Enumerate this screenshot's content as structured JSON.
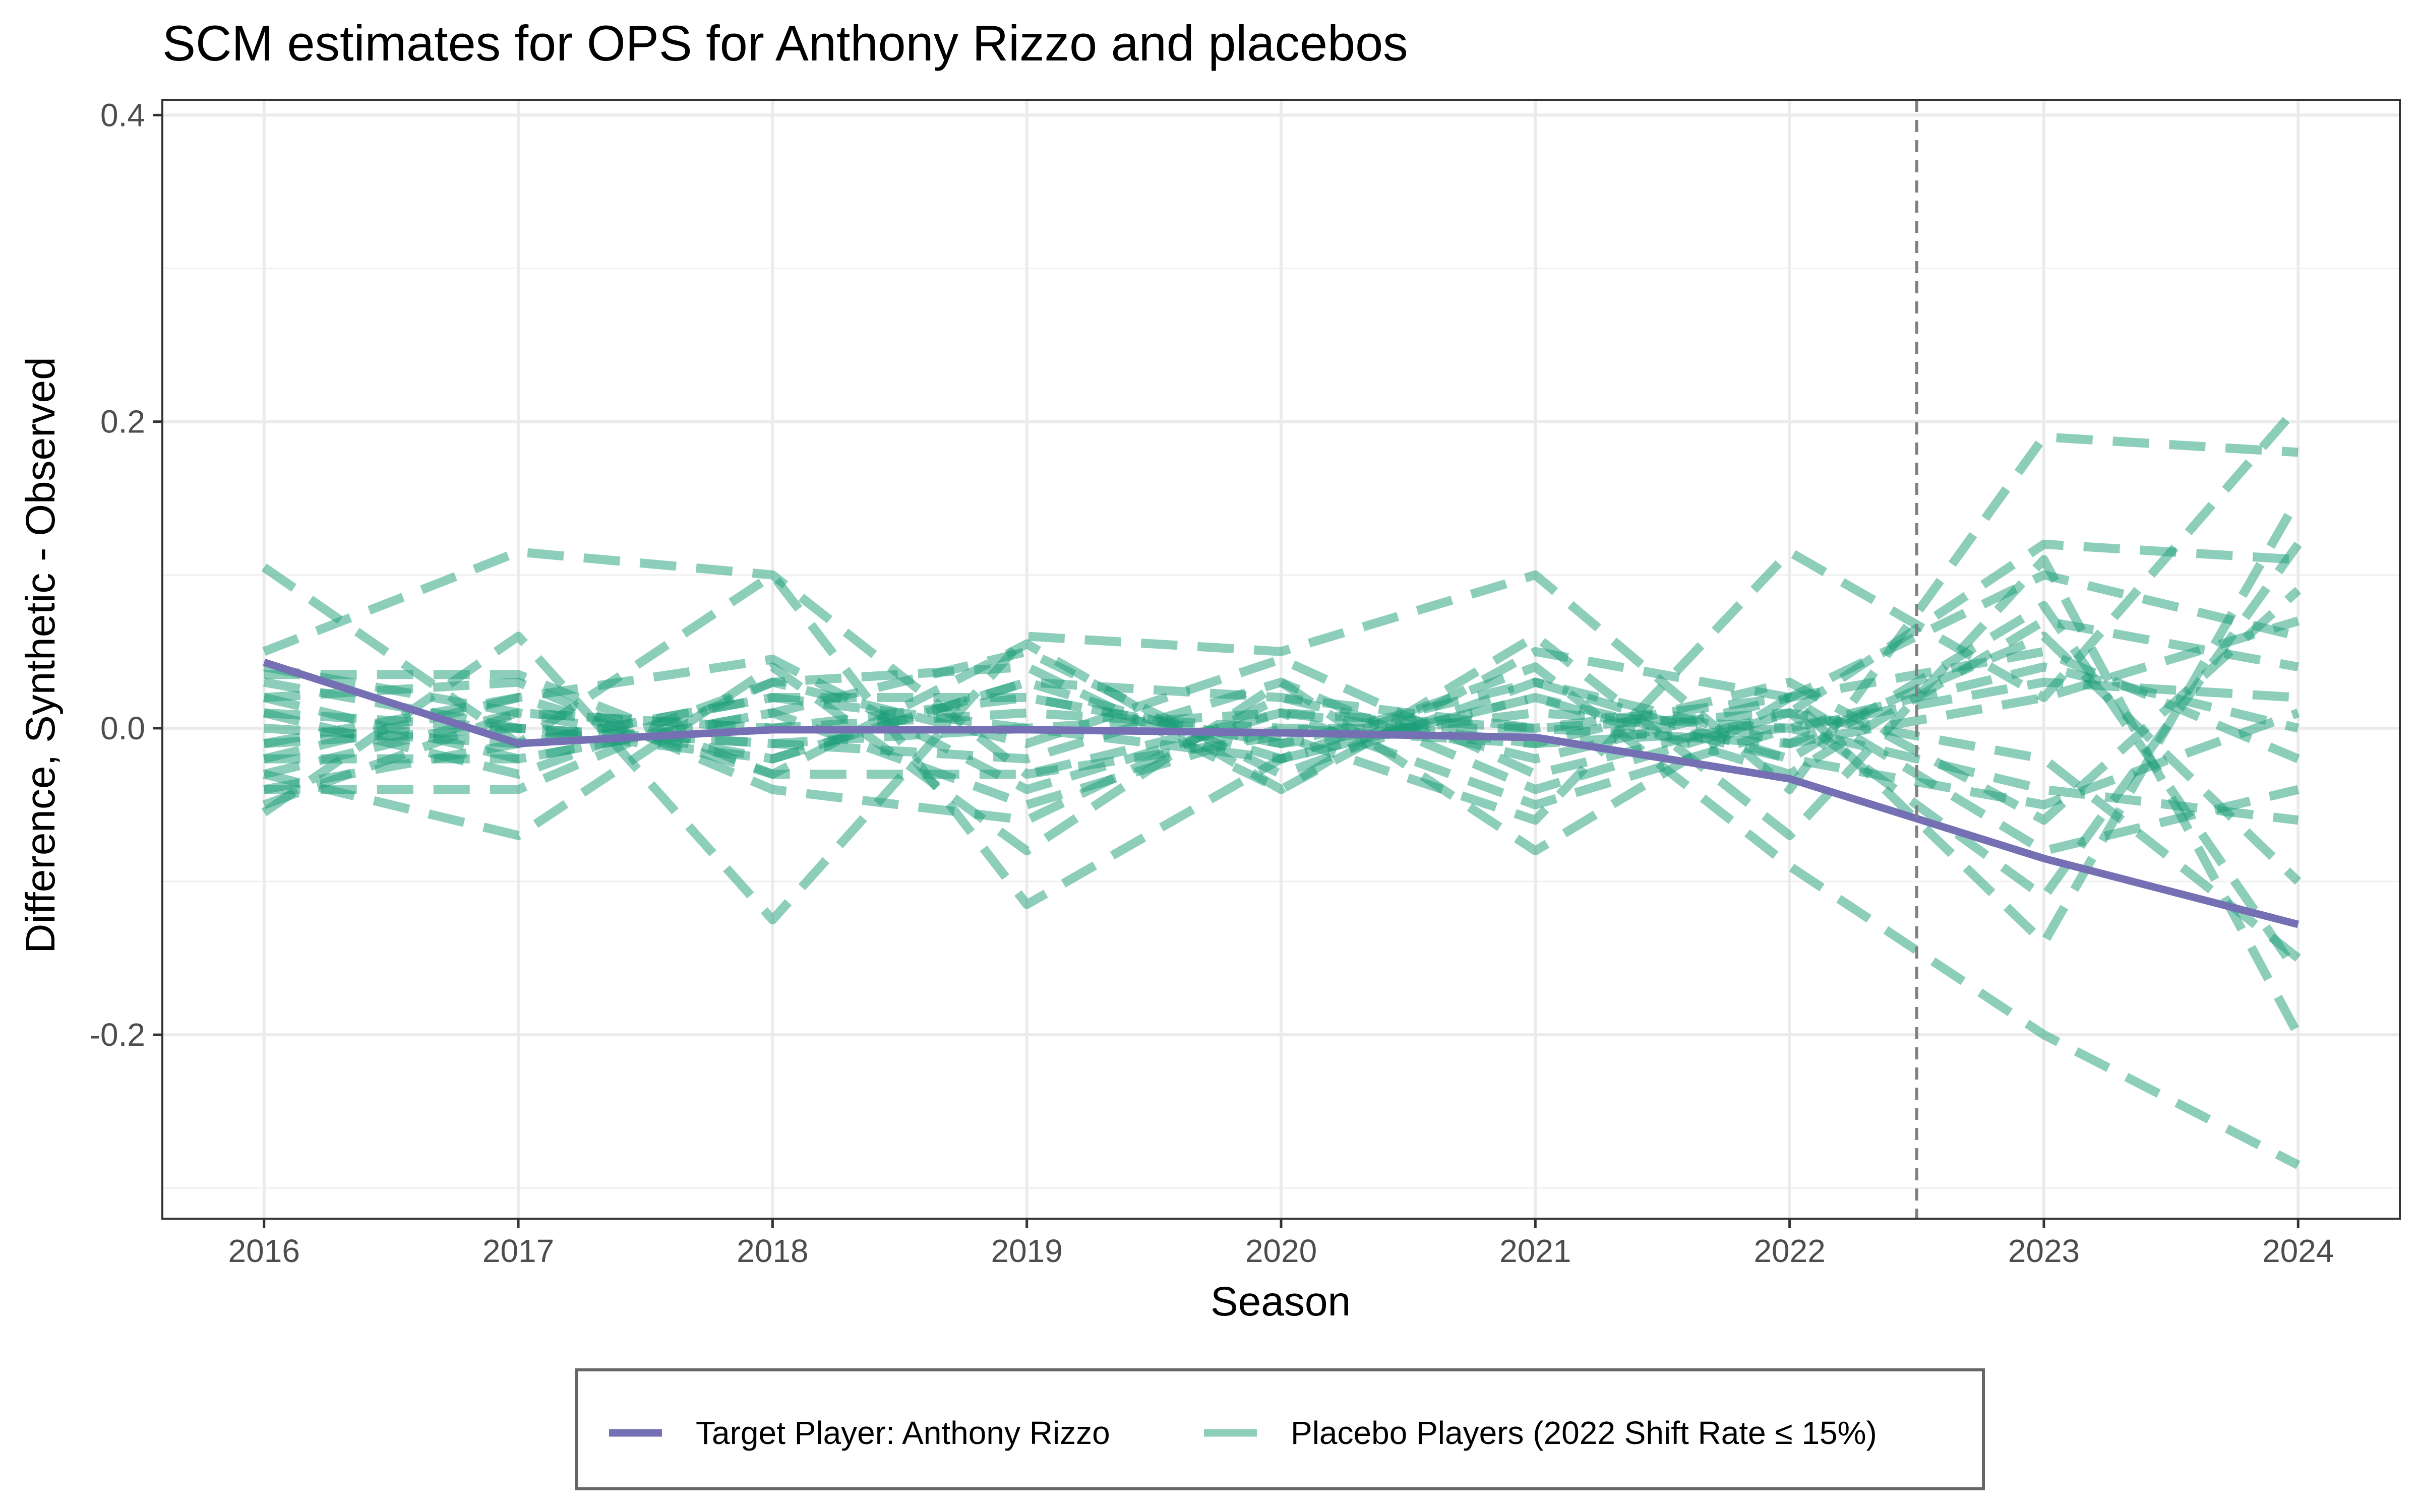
{
  "chart_data": {
    "type": "line",
    "title": "SCM estimates for OPS for Anthony Rizzo and placebos",
    "xlabel": "Season",
    "ylabel": "Difference, Synthetic - Observed",
    "x": [
      2016,
      2017,
      2018,
      2019,
      2020,
      2021,
      2022,
      2023,
      2024
    ],
    "x_tick_labels": [
      "2016",
      "2017",
      "2018",
      "2019",
      "2020",
      "2021",
      "2022",
      "2023",
      "2024"
    ],
    "xlim": [
      2015.6,
      2024.4
    ],
    "ylim": [
      -0.32,
      0.41
    ],
    "y_ticks": [
      -0.2,
      0.0,
      0.2,
      0.4
    ],
    "y_tick_labels": [
      "-0.2",
      "0.0",
      "0.2",
      "0.4"
    ],
    "grid": true,
    "vline": {
      "x": 2022.5,
      "style": "dashed",
      "color": "#808080"
    },
    "legend_position": "bottom",
    "series": [
      {
        "name": "Target Player: Anthony Rizzo",
        "style": "solid",
        "color": "#7570b3",
        "values": [
          0.043,
          -0.01,
          -0.001,
          -0.001,
          -0.003,
          -0.006,
          -0.033,
          -0.085,
          -0.128
        ]
      }
    ],
    "placebo_group": {
      "name": "Placebo Players (2022 Shift Rate ≤ 15%)",
      "style": "dashed",
      "color": "#1b9e77",
      "opacity": 0.5,
      "series": [
        [
          0.105,
          -0.01,
          0.1,
          -0.115,
          -0.02,
          0.04,
          -0.09,
          -0.2,
          -0.285
        ],
        [
          0.05,
          0.115,
          0.1,
          -0.03,
          -0.005,
          -0.06,
          0.115,
          0.02,
          0.21
        ],
        [
          -0.055,
          0.06,
          -0.125,
          0.06,
          0.05,
          0.1,
          -0.04,
          0.19,
          0.18
        ],
        [
          -0.03,
          -0.07,
          0.04,
          -0.08,
          0.03,
          -0.08,
          0.02,
          -0.14,
          0.15
        ],
        [
          0.035,
          0.035,
          -0.03,
          0.055,
          -0.04,
          0.06,
          -0.07,
          0.11,
          -0.2
        ],
        [
          -0.04,
          -0.04,
          0.03,
          -0.01,
          0.045,
          -0.03,
          0.01,
          -0.11,
          0.12
        ],
        [
          0.04,
          0.01,
          -0.02,
          0.03,
          -0.02,
          0.02,
          -0.02,
          0.08,
          -0.16
        ],
        [
          -0.01,
          0.02,
          0.045,
          -0.04,
          0.01,
          -0.01,
          0.03,
          -0.06,
          0.09
        ],
        [
          -0.02,
          -0.02,
          0.01,
          0.05,
          -0.03,
          0.03,
          -0.01,
          0.06,
          -0.1
        ],
        [
          0.02,
          0.03,
          -0.04,
          -0.06,
          0.02,
          -0.02,
          0.02,
          0.1,
          0.06
        ],
        [
          -0.04,
          -0.01,
          0.02,
          0.02,
          -0.01,
          0.01,
          0.0,
          -0.04,
          -0.06
        ],
        [
          0.03,
          0.0,
          -0.01,
          -0.02,
          0.03,
          -0.04,
          0.01,
          0.12,
          0.11
        ],
        [
          -0.03,
          0.01,
          0.0,
          0.01,
          0.0,
          0.0,
          -0.01,
          0.02,
          0.07
        ],
        [
          0.01,
          -0.03,
          0.03,
          0.04,
          -0.04,
          0.05,
          0.02,
          -0.08,
          -0.04
        ],
        [
          -0.02,
          0.02,
          -0.03,
          -0.03,
          0.01,
          -0.05,
          0.0,
          0.04,
          0.0
        ],
        [
          0.0,
          -0.01,
          0.02,
          0.0,
          -0.02,
          0.02,
          -0.03,
          0.07,
          0.04
        ],
        [
          -0.01,
          0.0,
          -0.02,
          0.03,
          0.02,
          0.0,
          0.01,
          -0.02,
          -0.15
        ],
        [
          0.02,
          -0.02,
          0.01,
          -0.05,
          0.0,
          -0.01,
          0.0,
          0.03,
          0.02
        ],
        [
          -0.05,
          0.01,
          0.0,
          0.02,
          -0.01,
          0.03,
          -0.02,
          -0.05,
          0.01
        ],
        [
          0.01,
          0.0,
          -0.01,
          0.0,
          0.01,
          0.0,
          0.02,
          0.05,
          -0.02
        ]
      ]
    }
  }
}
